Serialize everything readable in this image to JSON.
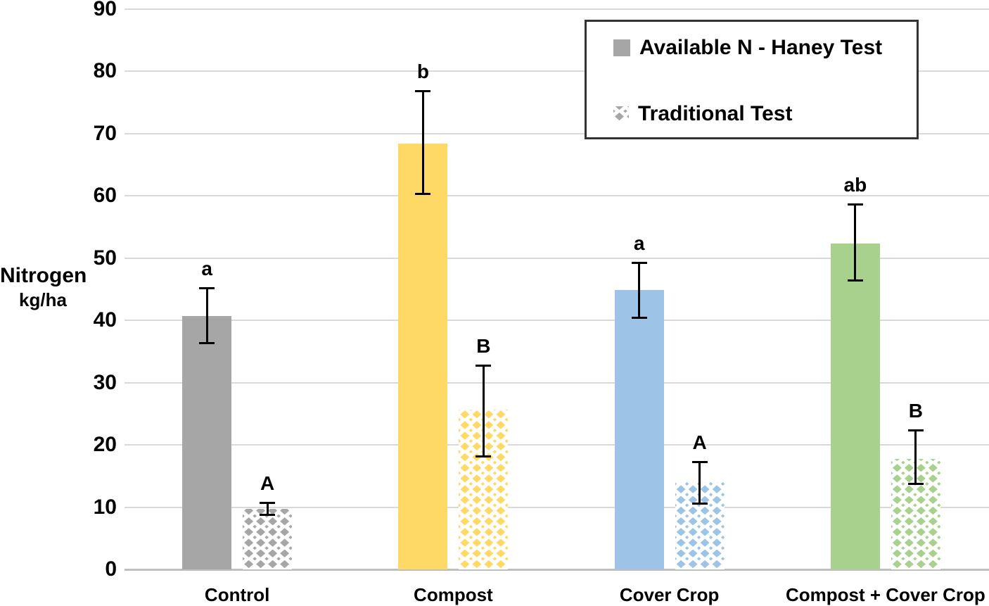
{
  "chart_data": {
    "type": "bar",
    "title": "",
    "categories": [
      "Control",
      "Compost",
      "Cover Crop",
      "Compost + Cover Crop"
    ],
    "category_colors": [
      "#A6A6A6",
      "#FFD966",
      "#9DC3E6",
      "#A9D18E"
    ],
    "series": [
      {
        "name": "Available N - Haney Test",
        "fill": "solid",
        "values": [
          40.7,
          68.4,
          44.9,
          52.3
        ],
        "error_low": [
          36.2,
          60.2,
          40.3,
          46.2
        ],
        "error_high": [
          45.3,
          77.0,
          49.4,
          58.8
        ],
        "sig_letters": [
          "a",
          "b",
          "a",
          "ab"
        ]
      },
      {
        "name": "Traditional Test",
        "fill": "diamond-pattern",
        "values": [
          9.7,
          25.7,
          14.0,
          17.8
        ],
        "error_low": [
          8.6,
          18.0,
          10.4,
          13.6
        ],
        "error_high": [
          10.8,
          32.9,
          17.4,
          22.5
        ],
        "sig_letters": [
          "A",
          "B",
          "A",
          "B"
        ]
      }
    ],
    "ylabel_lines": [
      "Nitrogen",
      "kg/ha"
    ],
    "ylim": [
      0,
      90
    ],
    "yticks": [
      0,
      10,
      20,
      30,
      40,
      50,
      60,
      70,
      80,
      90
    ],
    "grid": true,
    "legend_position": "top-right",
    "colors": {
      "background": "#FFFFFF",
      "gridline": "#D9D9D9",
      "axis_line": "#BFBFBF",
      "error_bar": "#000000",
      "text": "#000000",
      "legend_swatch": "#A6A6A6",
      "legend_border": "#333333"
    }
  }
}
